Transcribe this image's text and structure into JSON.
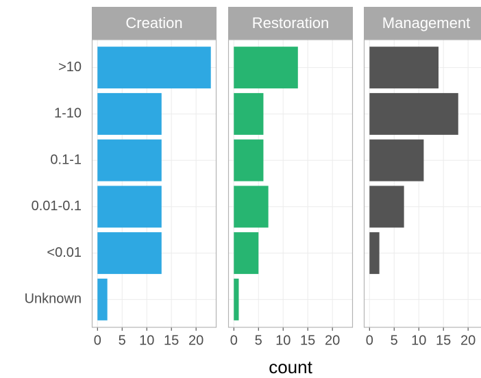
{
  "chart_data": {
    "type": "bar",
    "orientation": "horizontal",
    "categories": [
      ">10",
      "1-10",
      "0.1-1",
      "0.01-0.1",
      "<0.01",
      "Unknown"
    ],
    "series": [
      {
        "name": "Creation",
        "color": "#2ea8e2",
        "values": [
          23,
          13,
          13,
          13,
          13,
          2
        ]
      },
      {
        "name": "Restoration",
        "color": "#27b571",
        "values": [
          13,
          6,
          6,
          7,
          5,
          1
        ]
      },
      {
        "name": "Management",
        "color": "#545454",
        "values": [
          14,
          18,
          11,
          7,
          2,
          0
        ]
      }
    ],
    "xlabel": "count",
    "xlim": [
      -1.15,
      24.15
    ],
    "xticks": [
      0,
      5,
      10,
      15,
      20
    ],
    "grid": true
  }
}
